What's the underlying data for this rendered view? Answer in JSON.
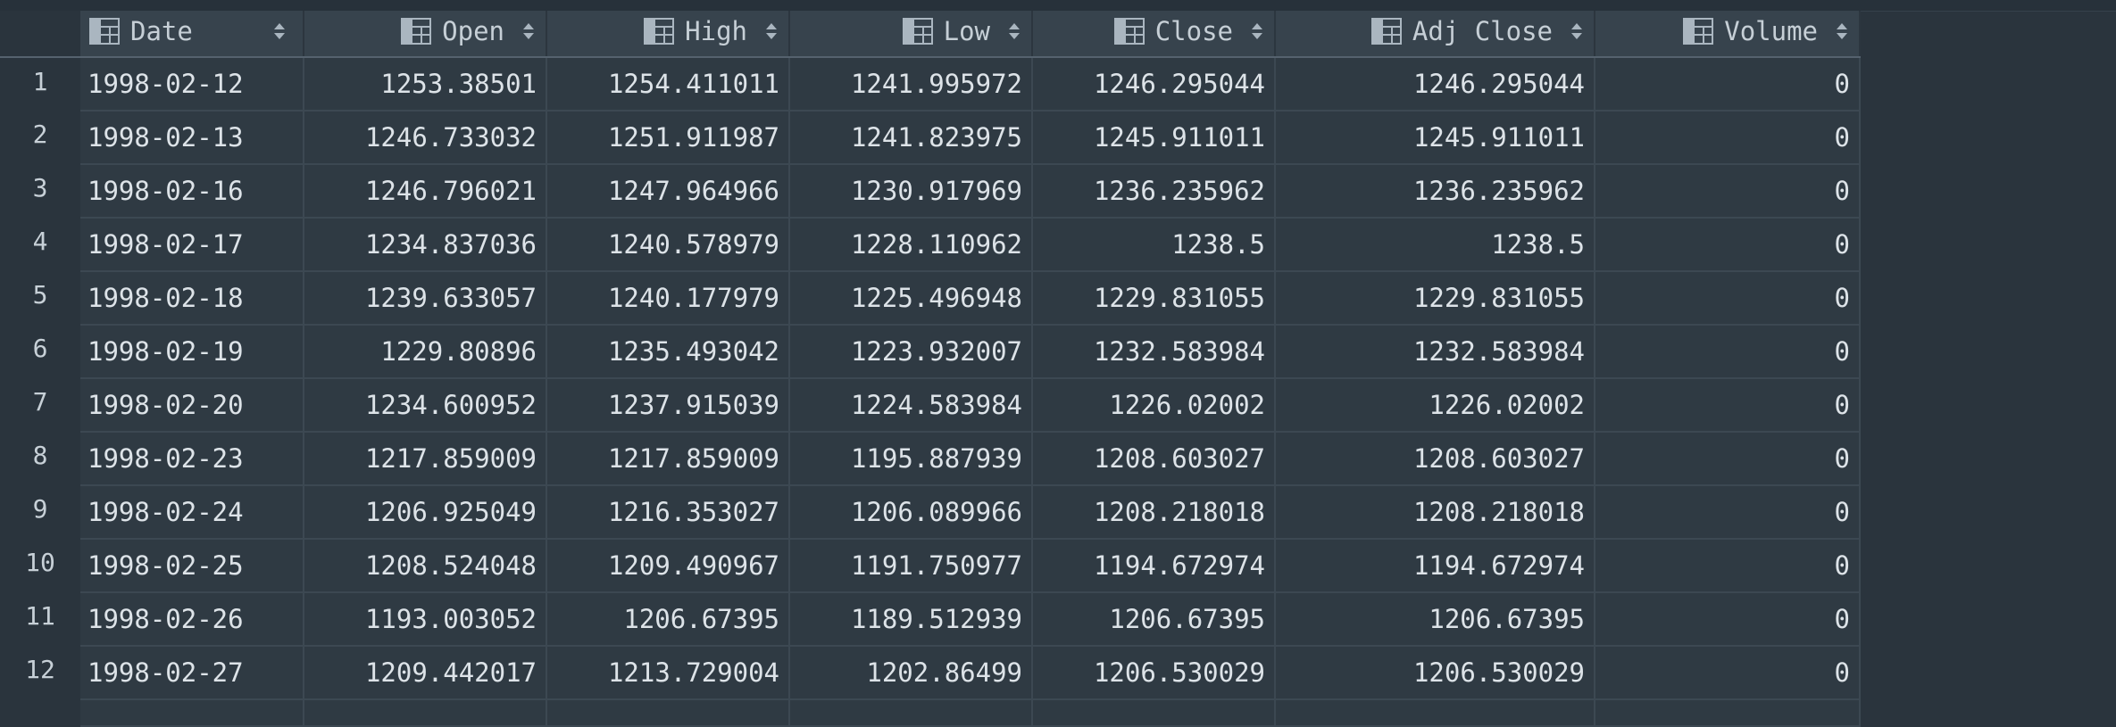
{
  "columns": [
    {
      "key": "date",
      "label": "Date"
    },
    {
      "key": "open",
      "label": "Open"
    },
    {
      "key": "high",
      "label": "High"
    },
    {
      "key": "low",
      "label": "Low"
    },
    {
      "key": "close",
      "label": "Close"
    },
    {
      "key": "adj_close",
      "label": "Adj Close"
    },
    {
      "key": "volume",
      "label": "Volume"
    }
  ],
  "rows": [
    {
      "n": "1",
      "date": "1998-02-12",
      "open": "1253.38501",
      "high": "1254.411011",
      "low": "1241.995972",
      "close": "1246.295044",
      "adj_close": "1246.295044",
      "volume": "0"
    },
    {
      "n": "2",
      "date": "1998-02-13",
      "open": "1246.733032",
      "high": "1251.911987",
      "low": "1241.823975",
      "close": "1245.911011",
      "adj_close": "1245.911011",
      "volume": "0"
    },
    {
      "n": "3",
      "date": "1998-02-16",
      "open": "1246.796021",
      "high": "1247.964966",
      "low": "1230.917969",
      "close": "1236.235962",
      "adj_close": "1236.235962",
      "volume": "0"
    },
    {
      "n": "4",
      "date": "1998-02-17",
      "open": "1234.837036",
      "high": "1240.578979",
      "low": "1228.110962",
      "close": "1238.5",
      "adj_close": "1238.5",
      "volume": "0"
    },
    {
      "n": "5",
      "date": "1998-02-18",
      "open": "1239.633057",
      "high": "1240.177979",
      "low": "1225.496948",
      "close": "1229.831055",
      "adj_close": "1229.831055",
      "volume": "0"
    },
    {
      "n": "6",
      "date": "1998-02-19",
      "open": "1229.80896",
      "high": "1235.493042",
      "low": "1223.932007",
      "close": "1232.583984",
      "adj_close": "1232.583984",
      "volume": "0"
    },
    {
      "n": "7",
      "date": "1998-02-20",
      "open": "1234.600952",
      "high": "1237.915039",
      "low": "1224.583984",
      "close": "1226.02002",
      "adj_close": "1226.02002",
      "volume": "0"
    },
    {
      "n": "8",
      "date": "1998-02-23",
      "open": "1217.859009",
      "high": "1217.859009",
      "low": "1195.887939",
      "close": "1208.603027",
      "adj_close": "1208.603027",
      "volume": "0"
    },
    {
      "n": "9",
      "date": "1998-02-24",
      "open": "1206.925049",
      "high": "1216.353027",
      "low": "1206.089966",
      "close": "1208.218018",
      "adj_close": "1208.218018",
      "volume": "0"
    },
    {
      "n": "10",
      "date": "1998-02-25",
      "open": "1208.524048",
      "high": "1209.490967",
      "low": "1191.750977",
      "close": "1194.672974",
      "adj_close": "1194.672974",
      "volume": "0"
    },
    {
      "n": "11",
      "date": "1998-02-26",
      "open": "1193.003052",
      "high": "1206.67395",
      "low": "1189.512939",
      "close": "1206.67395",
      "adj_close": "1206.67395",
      "volume": "0"
    },
    {
      "n": "12",
      "date": "1998-02-27",
      "open": "1209.442017",
      "high": "1213.729004",
      "low": "1202.86499",
      "close": "1206.530029",
      "adj_close": "1206.530029",
      "volume": "0"
    }
  ],
  "icons": {
    "column": "table-column-icon",
    "sort": "sort-arrows-icon"
  },
  "colors": {
    "background": "#2a343d",
    "header_bg": "#37434d",
    "cell_bg": "#2f3a43",
    "grid_line": "#3c4852",
    "text": "#dde3e8"
  }
}
